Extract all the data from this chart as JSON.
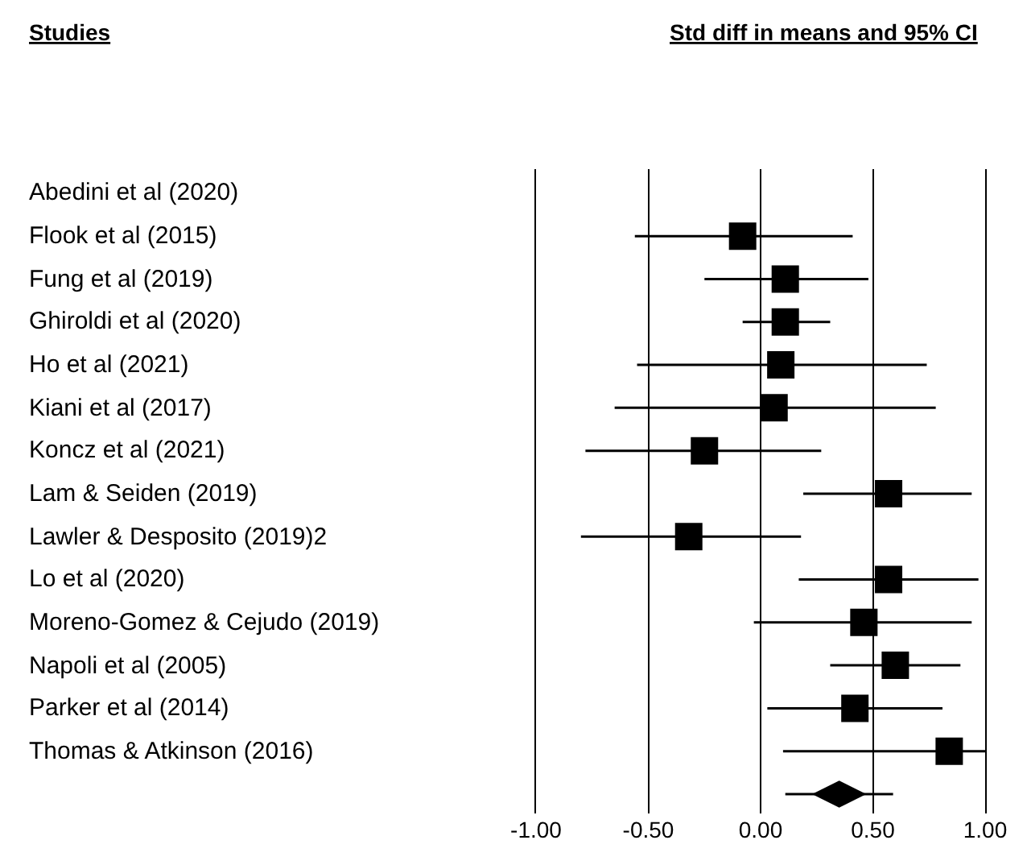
{
  "chart_data": {
    "type": "scatter",
    "orientation": "horizontal",
    "title": "Std diff in means and 95% CI",
    "annotations": [
      "Studies"
    ],
    "categories": [
      "Abedini et al (2020)",
      "Flook et al (2015)",
      "Fung et al (2019)",
      "Ghiroldi et al (2020)",
      "Ho et al (2021)",
      "Kiani et al (2017)",
      "Koncz et al (2021)",
      "Lam & Seiden (2019)",
      "Lawler & Desposito (2019)2",
      "Lo et al (2020)",
      "Moreno-Gomez & Cejudo (2019)",
      "Napoli et al (2005)",
      "Parker et al (2014)",
      "Thomas & Atkinson (2016)",
      null
    ],
    "series": [
      {
        "marker": "square",
        "color": "#000000",
        "values": [
          null,
          -0.08,
          0.11,
          0.11,
          0.09,
          0.06,
          -0.25,
          0.57,
          -0.32,
          0.57,
          0.46,
          0.6,
          0.42,
          0.84,
          null
        ],
        "errors": [
          null,
          [
            -0.56,
            0.41
          ],
          [
            -0.25,
            0.48
          ],
          [
            -0.08,
            0.31
          ],
          [
            -0.55,
            0.74
          ],
          [
            -0.65,
            0.78
          ],
          [
            -0.78,
            0.27
          ],
          [
            0.19,
            0.94
          ],
          [
            -0.8,
            0.18
          ],
          [
            0.17,
            0.97
          ],
          [
            -0.03,
            0.94
          ],
          [
            0.31,
            0.89
          ],
          [
            0.03,
            0.81
          ],
          [
            0.1,
            1.0
          ],
          null
        ]
      },
      {
        "marker": "diamond",
        "color": "#000000",
        "values": [
          null,
          null,
          null,
          null,
          null,
          null,
          null,
          null,
          null,
          null,
          null,
          null,
          null,
          null,
          0.35
        ],
        "errors": [
          null,
          null,
          null,
          null,
          null,
          null,
          null,
          null,
          null,
          null,
          null,
          null,
          null,
          null,
          [
            0.11,
            0.59
          ]
        ]
      }
    ],
    "xlim": [
      -1.0,
      1.0
    ],
    "xticks": [
      {
        "value": -1,
        "label": "-1.00"
      },
      {
        "value": -0.5,
        "label": "-0.50"
      },
      {
        "value": 0,
        "label": "0.00"
      },
      {
        "value": 0.5,
        "label": "0.50"
      },
      {
        "value": 1,
        "label": "1.00"
      }
    ],
    "grid": "x"
  }
}
